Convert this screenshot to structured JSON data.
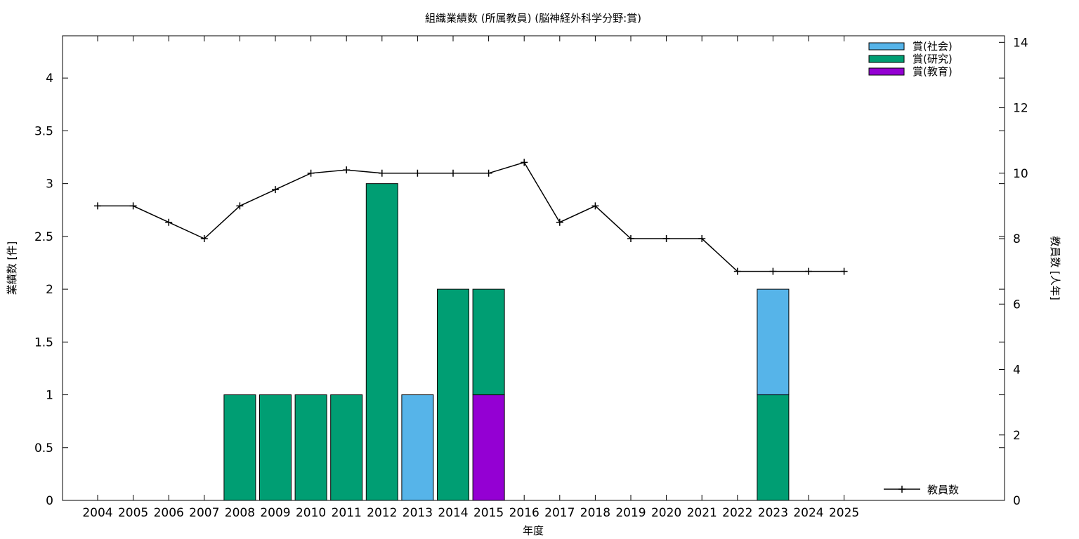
{
  "chart_data": {
    "type": "bar",
    "title": "組織業績数 (所属教員) (脳神経外科学分野:賞)",
    "xlabel": "年度",
    "ylabel": "業績数 [件]",
    "y2label": "教員数 [人年]",
    "ylim": [
      0,
      4.4
    ],
    "y2lim": [
      0,
      14.2
    ],
    "yticks": [
      0,
      0.5,
      1,
      1.5,
      2,
      2.5,
      3,
      3.5,
      4
    ],
    "y2ticks": [
      0,
      2,
      4,
      6,
      8,
      10,
      12,
      14
    ],
    "stacked": true,
    "grid": false,
    "legend_position": "top-right",
    "categories": [
      "2004",
      "2005",
      "2006",
      "2007",
      "2008",
      "2009",
      "2010",
      "2011",
      "2012",
      "2013",
      "2014",
      "2015",
      "2016",
      "2017",
      "2018",
      "2019",
      "2020",
      "2021",
      "2022",
      "2023",
      "2024",
      "2025"
    ],
    "series": [
      {
        "name": "賞(教育)",
        "color": "#9400d3",
        "values": [
          0,
          0,
          0,
          0,
          0,
          0,
          0,
          0,
          0,
          0,
          0,
          1,
          0,
          0,
          0,
          0,
          0,
          0,
          0,
          0,
          0,
          0
        ]
      },
      {
        "name": "賞(研究)",
        "color": "#009e73",
        "values": [
          0,
          0,
          0,
          0,
          1,
          1,
          1,
          1,
          3,
          0,
          2,
          1,
          0,
          0,
          0,
          0,
          0,
          0,
          0,
          1,
          0,
          0
        ]
      },
      {
        "name": "賞(社会)",
        "color": "#56b4e9",
        "values": [
          0,
          0,
          0,
          0,
          0,
          0,
          0,
          0,
          0,
          1,
          0,
          0,
          0,
          0,
          0,
          0,
          0,
          0,
          0,
          1,
          0,
          0
        ]
      }
    ],
    "line_series": {
      "name": "教員数",
      "axis": "y2",
      "color": "#000000",
      "values": [
        9,
        9,
        8.5,
        8,
        9,
        9.5,
        10,
        10.1,
        10,
        10,
        10,
        10,
        10.33,
        8.5,
        9,
        8,
        8,
        8,
        7,
        7,
        7,
        7
      ]
    },
    "legend_order": [
      "賞(社会)",
      "賞(研究)",
      "賞(教育)"
    ]
  }
}
